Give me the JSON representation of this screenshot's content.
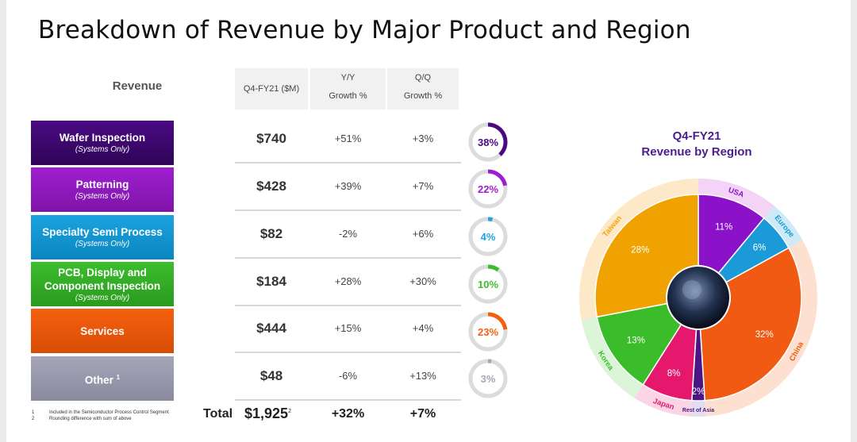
{
  "title": "Breakdown of Revenue by Major Product and Region",
  "table_header": {
    "revenue": "Revenue",
    "value_col": "Q4-FY21 ($M)",
    "yy_l1": "Y/Y",
    "yy_l2": "Growth %",
    "qq_l1": "Q/Q",
    "qq_l2": "Growth %"
  },
  "rows": [
    {
      "name": "Wafer Inspection",
      "sub": "(Systems Only)",
      "value": "$740",
      "yy": "+51%",
      "qq": "+3%",
      "share": 38,
      "share_label": "38%",
      "color": "#4b0a82",
      "color2": "#2e0557"
    },
    {
      "name": "Patterning",
      "sub": "(Systems Only)",
      "value": "$428",
      "yy": "+39%",
      "qq": "+7%",
      "share": 22,
      "share_label": "22%",
      "color": "#9f1fd0",
      "color2": "#7e14a8"
    },
    {
      "name": "Specialty Semi Process",
      "sub": "(Systems Only)",
      "value": "$82",
      "yy": "-2%",
      "qq": "+6%",
      "share": 4,
      "share_label": "4%",
      "color": "#1ca3e0",
      "color2": "#0a86bf"
    },
    {
      "name": "PCB, Display and Component Inspection",
      "sub": "(Systems Only)",
      "value": "$184",
      "yy": "+28%",
      "qq": "+30%",
      "share": 10,
      "share_label": "10%",
      "color": "#3cbd2e",
      "color2": "#2a9a1e"
    },
    {
      "name": "Services",
      "sub": "",
      "value": "$444",
      "yy": "+15%",
      "qq": "+4%",
      "share": 23,
      "share_label": "23%",
      "color": "#f5600f",
      "color2": "#d84c05"
    },
    {
      "name": "Other",
      "sup": "1",
      "sub": "",
      "value": "$48",
      "yy": "-6%",
      "qq": "+13%",
      "share": 3,
      "share_label": "3%",
      "color": "#a6a6b8",
      "color2": "#8a8aa0"
    }
  ],
  "total": {
    "label": "Total",
    "value": "$1,925",
    "sup": "2",
    "yy": "+32%",
    "qq": "+7%"
  },
  "footnotes": [
    {
      "num": "1",
      "text": "Included in the Semiconductor Process Control Segment"
    },
    {
      "num": "2",
      "text": "Rounding difference with sum of above"
    }
  ],
  "chart_data": {
    "type": "pie",
    "title": "Q4-FY21",
    "subtitle": "Revenue by Region",
    "slices": [
      {
        "region": "USA",
        "value": 11,
        "label": "11%",
        "color": "#8b12c9",
        "ring": "#f3d4f7"
      },
      {
        "region": "Europe",
        "value": 6,
        "label": "6%",
        "color": "#1a9ad6",
        "ring": "#cdeaf7"
      },
      {
        "region": "China",
        "value": 32,
        "label": "32%",
        "color": "#f05a12",
        "ring": "#fde0d0"
      },
      {
        "region": "Rest of Asia",
        "value": 2,
        "label": "2%",
        "color": "#4a1585",
        "ring": "#e4dcf0"
      },
      {
        "region": "Japan",
        "value": 8,
        "label": "8%",
        "color": "#e5186e",
        "ring": "#fbd5e6"
      },
      {
        "region": "Korea",
        "value": 13,
        "label": "13%",
        "color": "#3bbd2b",
        "ring": "#dcf5d8"
      },
      {
        "region": "Taiwan",
        "value": 28,
        "label": "28%",
        "color": "#f0a300",
        "ring": "#fde9c8"
      }
    ]
  }
}
